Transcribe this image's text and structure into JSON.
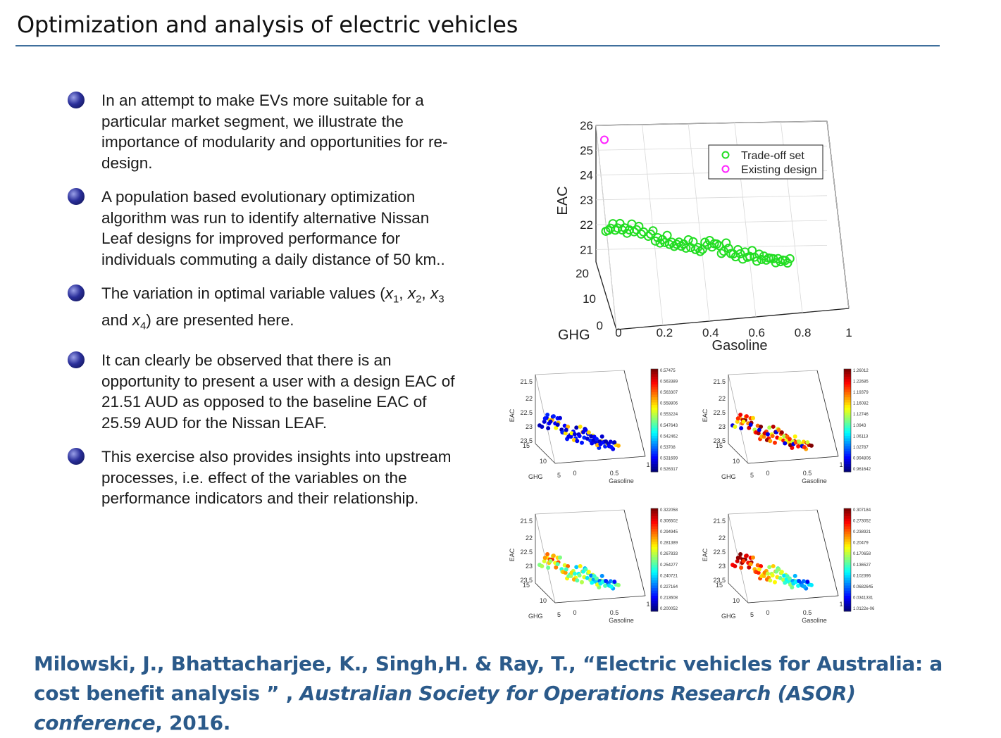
{
  "slide": {
    "title": "Optimization and analysis of electric vehicles"
  },
  "bullets": [
    {
      "text": "In an attempt to make EVs more suitable for a particular market segment, we illustrate the importance of modularity and opportunities for re-design."
    },
    {
      "text": "A population based evolutionary optimization algorithm was run to identify alternative Nissan Leaf designs for improved performance for individuals commuting a daily distance of 50 km.."
    },
    {
      "pre": "The variation in optimal variable values (",
      "x": "x",
      "s1": "1",
      "comma1": ",",
      "s2": "2",
      "comma2": ", ",
      "s3": "3",
      "and": " and ",
      "s4": "4",
      "post": ") are presented here."
    },
    {
      "text": "It can clearly be observed that there is an opportunity to present a user with a design EAC of 21.51 AUD as opposed to the baseline EAC of 25.59 AUD for the Nissan LEAF."
    },
    {
      "text": "This exercise also provides insights into upstream processes, i.e. effect of the variables on the performance indicators and their relationship."
    }
  ],
  "citation": {
    "authors": "Milowski, J., Bhattacharjee, K., Singh,H. & Ray, T., “Electric vehicles for Australia: a cost benefit analysis ” , ",
    "venue": "Australian Society for Operations Research (ASOR) conference",
    "year": ", 2016."
  },
  "chart_data": [
    {
      "type": "scatter",
      "subtype": "3d",
      "xlabel": "Gasoline",
      "ylabel": "GHG",
      "zlabel": "EAC",
      "xticks": [
        "0",
        "0.2",
        "0.4",
        "0.6",
        "0.8",
        "1"
      ],
      "yticks": [
        "0",
        "10",
        "20"
      ],
      "zticks": [
        "21",
        "22",
        "23",
        "24",
        "25",
        "26"
      ],
      "xlim": [
        0,
        1
      ],
      "zlim": [
        20.5,
        26
      ],
      "legend": [
        "Trade-off set",
        "Existing design"
      ],
      "legend_position": "top-right",
      "colors": {
        "tradeoff": "#22dd22",
        "existing": "#ff22ff"
      },
      "series": [
        {
          "name": "Existing design",
          "points": [
            [
              0.0,
              25.59
            ]
          ]
        },
        {
          "name": "Trade-off set",
          "points": [
            [
              0.0,
              21.95
            ],
            [
              0.01,
              22.05
            ],
            [
              0.02,
              22.2
            ],
            [
              0.03,
              22.3
            ],
            [
              0.04,
              22.1
            ],
            [
              0.05,
              22.25
            ],
            [
              0.06,
              22.35
            ],
            [
              0.07,
              22.15
            ],
            [
              0.08,
              22.3
            ],
            [
              0.09,
              22.0
            ],
            [
              0.1,
              22.2
            ],
            [
              0.11,
              22.35
            ],
            [
              0.12,
              22.1
            ],
            [
              0.13,
              22.25
            ],
            [
              0.14,
              22.3
            ],
            [
              0.15,
              22.05
            ],
            [
              0.16,
              22.2
            ],
            [
              0.18,
              21.95
            ],
            [
              0.19,
              22.1
            ],
            [
              0.2,
              22.3
            ],
            [
              0.21,
              21.8
            ],
            [
              0.22,
              22.0
            ],
            [
              0.23,
              21.7
            ],
            [
              0.24,
              21.9
            ],
            [
              0.25,
              21.85
            ],
            [
              0.26,
              22.05
            ],
            [
              0.27,
              21.75
            ],
            [
              0.28,
              21.9
            ],
            [
              0.29,
              21.65
            ],
            [
              0.3,
              21.8
            ],
            [
              0.31,
              21.95
            ],
            [
              0.32,
              21.7
            ],
            [
              0.33,
              21.85
            ],
            [
              0.34,
              21.6
            ],
            [
              0.35,
              22.0
            ],
            [
              0.36,
              21.75
            ],
            [
              0.37,
              21.9
            ],
            [
              0.38,
              21.65
            ],
            [
              0.39,
              21.8
            ],
            [
              0.4,
              21.55
            ],
            [
              0.41,
              21.7
            ],
            [
              0.42,
              22.05
            ],
            [
              0.43,
              21.85
            ],
            [
              0.44,
              22.1
            ],
            [
              0.45,
              21.75
            ],
            [
              0.46,
              21.95
            ],
            [
              0.47,
              22.0
            ],
            [
              0.48,
              21.85
            ],
            [
              0.49,
              21.6
            ],
            [
              0.5,
              21.75
            ],
            [
              0.51,
              22.0
            ],
            [
              0.52,
              21.85
            ],
            [
              0.53,
              21.7
            ],
            [
              0.54,
              21.6
            ],
            [
              0.55,
              21.55
            ],
            [
              0.56,
              21.75
            ],
            [
              0.57,
              21.65
            ],
            [
              0.58,
              21.5
            ],
            [
              0.59,
              21.7
            ],
            [
              0.6,
              21.55
            ],
            [
              0.61,
              21.65
            ],
            [
              0.62,
              21.8
            ],
            [
              0.63,
              21.6
            ],
            [
              0.64,
              21.5
            ],
            [
              0.65,
              21.7
            ],
            [
              0.66,
              21.55
            ],
            [
              0.67,
              21.6
            ],
            [
              0.68,
              21.5
            ],
            [
              0.69,
              21.65
            ],
            [
              0.7,
              21.55
            ],
            [
              0.71,
              21.6
            ],
            [
              0.72,
              21.5
            ],
            [
              0.73,
              21.58
            ],
            [
              0.74,
              21.52
            ],
            [
              0.75,
              21.65
            ],
            [
              0.76,
              21.55
            ],
            [
              0.77,
              21.51
            ],
            [
              0.78,
              21.6
            ]
          ]
        }
      ]
    },
    {
      "type": "scatter",
      "subtype": "3d-colored",
      "xlabel": "Gasoline",
      "ylabel": "GHG",
      "zlabel": "EAC",
      "zticks": [
        "21.5",
        "22",
        "22.5",
        "23",
        "23.5"
      ],
      "yticks": [
        "15",
        "10",
        "5"
      ],
      "xticks": [
        "0",
        "0.5",
        "1"
      ],
      "colorbar_ticks": [
        "0.57475",
        "0.563389",
        "0.563307",
        "0.558806",
        "0.553224",
        "0.547643",
        "0.542462",
        "0.53708",
        "0.531699",
        "0.526317"
      ],
      "color_trend": "mostly-low"
    },
    {
      "type": "scatter",
      "subtype": "3d-colored",
      "xlabel": "Gasoline",
      "ylabel": "GHG",
      "zlabel": "EAC",
      "zticks": [
        "21.5",
        "22",
        "22.5",
        "23",
        "23.5"
      ],
      "yticks": [
        "15",
        "10",
        "5"
      ],
      "xticks": [
        "0",
        "0.5",
        "1"
      ],
      "colorbar_ticks": [
        "1.26012",
        "1.22685",
        "1.19379",
        "1.16082",
        "1.12746",
        "1.0943",
        "1.06113",
        "1.02787",
        "0.994806",
        "0.961642"
      ],
      "color_trend": "mostly-high"
    },
    {
      "type": "scatter",
      "subtype": "3d-colored",
      "xlabel": "Gasoline",
      "ylabel": "GHG",
      "zlabel": "EAC",
      "zticks": [
        "21.5",
        "22",
        "22.5",
        "23",
        "23.5"
      ],
      "yticks": [
        "15",
        "10",
        "5"
      ],
      "xticks": [
        "0",
        "0.5",
        "1"
      ],
      "colorbar_ticks": [
        "0.322058",
        "0.306502",
        "0.294945",
        "0.281389",
        "0.267833",
        "0.254277",
        "0.240721",
        "0.227164",
        "0.213608",
        "0.200052"
      ],
      "color_trend": "mixed"
    },
    {
      "type": "scatter",
      "subtype": "3d-colored",
      "xlabel": "Gasoline",
      "ylabel": "GHG",
      "zlabel": "EAC",
      "zticks": [
        "21.5",
        "22",
        "22.5",
        "23",
        "23.5"
      ],
      "yticks": [
        "15",
        "10",
        "5"
      ],
      "xticks": [
        "0",
        "0.5",
        "1"
      ],
      "colorbar_ticks": [
        "0.307184",
        "0.273052",
        "0.238921",
        "0.20479",
        "0.170658",
        "0.136527",
        "0.102396",
        "0.0682645",
        "0.0341331",
        "1.0122e-06"
      ],
      "color_trend": "decreasing-with-gasoline"
    }
  ]
}
